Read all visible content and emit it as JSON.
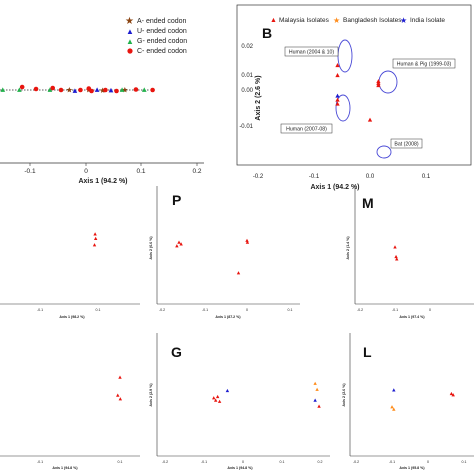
{
  "colors": {
    "A": "#8b4513",
    "U": "#1c1ccf",
    "G": "#21b14b",
    "C": "#e8150f",
    "malaysia": "#e8150f",
    "bangladesh": "#ff8c1a",
    "india": "#1c1ccf",
    "ellipse": "#4949d6"
  },
  "chart_data": [
    {
      "id": "A-partial",
      "type": "scatter",
      "panel_letter": "",
      "xlabel": "Axis 1 (94.2 %)",
      "xtick_labels": [
        "-0.1",
        "0",
        "0.1",
        "0.2"
      ],
      "xlim": [
        -0.17,
        0.2
      ],
      "ylim": [
        -0.02,
        0.02
      ],
      "legend": [
        "A- ended codon",
        "U- ended codon",
        "G- ended codon",
        "C- ended codon"
      ],
      "series": [
        {
          "name": "A- ended codon",
          "marker": "star",
          "color": "#8b4513",
          "points": [
            [
              -0.03,
              0.0
            ],
            [
              0.005,
              0.0
            ],
            [
              0.03,
              -0.001
            ],
            [
              0.07,
              0.0
            ]
          ]
        },
        {
          "name": "U- ended codon",
          "marker": "triangle",
          "color": "#1c1ccf",
          "points": [
            [
              -0.02,
              -0.002
            ],
            [
              0.02,
              0.0
            ],
            [
              0.045,
              -0.001
            ]
          ]
        },
        {
          "name": "G- ended codon",
          "marker": "triangle",
          "color": "#21b14b",
          "points": [
            [
              -0.15,
              0.0
            ],
            [
              -0.12,
              0.0
            ],
            [
              -0.065,
              0.0
            ],
            [
              0.065,
              0.0
            ],
            [
              0.105,
              0.0
            ]
          ]
        },
        {
          "name": "C- ended codon",
          "marker": "circle",
          "color": "#e8150f",
          "points": [
            [
              -0.17,
              0.004
            ],
            [
              -0.115,
              0.006
            ],
            [
              -0.09,
              0.002
            ],
            [
              -0.06,
              0.004
            ],
            [
              -0.045,
              0.0
            ],
            [
              -0.01,
              0.0
            ],
            [
              0.005,
              0.003
            ],
            [
              0.01,
              -0.002
            ],
            [
              0.035,
              0.0
            ],
            [
              0.055,
              -0.002
            ],
            [
              0.09,
              0.001
            ],
            [
              0.12,
              0.0
            ]
          ]
        }
      ]
    },
    {
      "id": "B",
      "type": "scatter",
      "panel_letter": "B",
      "xlabel": "Axis 1 (94.2 %)",
      "ylabel": "Axis 2 (2.6 %)",
      "xtick_labels": [
        "-0.2",
        "-0.1",
        "0.0",
        "0.1"
      ],
      "ytick_labels": [
        "0.02",
        "0.01",
        "0.00",
        "-0.01"
      ],
      "xlim": [
        -0.2,
        0.1
      ],
      "ylim": [
        -0.016,
        0.025
      ],
      "legend": [
        "Malaysia Isolates",
        "Bangladesh Isolates",
        "India Isolate"
      ],
      "series": [
        {
          "name": "Malaysia Isolates",
          "color": "#e8150f",
          "points": [
            [
              -0.058,
              0.0118
            ],
            [
              -0.058,
              0.0068
            ],
            [
              -0.058,
              -0.0055
            ],
            [
              -0.058,
              -0.0075
            ],
            [
              0.015,
              0.0038
            ],
            [
              0.015,
              0.0028
            ],
            [
              0.015,
              0.0018
            ],
            [
              0.0,
              -0.0155
            ]
          ]
        },
        {
          "name": "India Isolate",
          "color": "#1c1ccf",
          "points": [
            [
              -0.058,
              -0.0035
            ]
          ]
        }
      ],
      "annotations": [
        "Human (2004 & 10)",
        "Human & Pig (1999-03)",
        "Human (2007-08)",
        "Bat (2008)"
      ]
    },
    {
      "id": "mid-left",
      "type": "scatter",
      "panel_letter": "",
      "xlabel": "Axis 1 (98.2 %)",
      "xtick_labels": [
        "-0.1",
        "0.1"
      ],
      "points": [
        [
          0.09,
          0.012
        ],
        [
          0.092,
          0.007
        ],
        [
          0.088,
          0.0
        ]
      ]
    },
    {
      "id": "P",
      "type": "scatter",
      "panel_letter": "P",
      "xlabel": "Axis 1 (87.2 %)",
      "ylabel": "Axis 2 (6.6 %)",
      "xtick_labels": [
        "-0.2",
        "-0.1",
        "0",
        "0.1"
      ],
      "points": [
        [
          -0.165,
          0.0
        ],
        [
          -0.16,
          0.002
        ],
        [
          -0.155,
          0.001
        ],
        [
          0.0,
          0.003
        ],
        [
          0.001,
          0.002
        ],
        [
          -0.02,
          -0.015
        ]
      ]
    },
    {
      "id": "M",
      "type": "scatter",
      "panel_letter": "M",
      "xlabel": "Axis 1 (97.4 %)",
      "ylabel": "Axis 2 (1.4 %)",
      "xtick_labels": [
        "-0.2",
        "-0.1",
        "0"
      ],
      "points": [
        [
          -0.1,
          0.004
        ],
        [
          -0.097,
          -0.004
        ],
        [
          -0.095,
          -0.006
        ]
      ]
    },
    {
      "id": "bottom-left",
      "type": "scatter",
      "panel_letter": "",
      "xlabel": "Axis 1 (94.8 %)",
      "xtick_labels": [
        "-0.1",
        "0.1"
      ],
      "points": [
        [
          0.125,
          0.012
        ],
        [
          0.118,
          0.002
        ],
        [
          0.126,
          0.0
        ]
      ]
    },
    {
      "id": "G",
      "type": "scatter",
      "panel_letter": "G",
      "xlabel": "Axis 1 (94.8 %)",
      "ylabel": "Axis 2 (2.9 %)",
      "xtick_labels": [
        "-0.2",
        "-0.1",
        "0",
        "0.1",
        "0.2"
      ],
      "points_malaysia": [
        [
          -0.075,
          0.0
        ],
        [
          -0.07,
          -0.002
        ],
        [
          -0.065,
          0.001
        ],
        [
          -0.06,
          -0.003
        ]
      ],
      "points_bangladesh": [
        [
          0.185,
          0.012
        ],
        [
          0.19,
          0.007
        ]
      ],
      "points_india": [
        [
          -0.04,
          0.006
        ],
        [
          0.185,
          -0.002
        ]
      ],
      "points_other": [
        [
          0.195,
          -0.007
        ]
      ]
    },
    {
      "id": "L",
      "type": "scatter",
      "panel_letter": "L",
      "xlabel": "Axis 1 (95.8 %)",
      "ylabel": "Axis 2 (2.6 %)",
      "xtick_labels": [
        "-0.2",
        "-0.1",
        "0",
        "0.1"
      ],
      "points_malaysia": [
        [
          0.065,
          0.001
        ],
        [
          0.07,
          0.0
        ]
      ],
      "points_bangladesh": [
        [
          -0.1,
          -0.01
        ],
        [
          -0.095,
          -0.012
        ]
      ],
      "points_india": [
        [
          -0.095,
          0.004
        ]
      ]
    }
  ]
}
